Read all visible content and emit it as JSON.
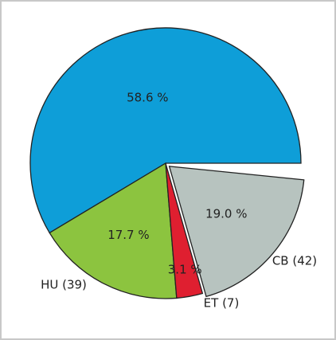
{
  "chart_data": {
    "type": "pie",
    "categories": [
      null,
      "HU (39)",
      "ET (7)",
      "CB (42)"
    ],
    "values": [
      58.6,
      17.7,
      3.1,
      19.0
    ],
    "value_labels": [
      "58.6 %",
      "17.7 %",
      "3.1 %",
      "19.0 %"
    ],
    "colors": [
      "#0e9ed8",
      "#8cc43f",
      "#df1f30",
      "#b7c3bf"
    ]
  }
}
